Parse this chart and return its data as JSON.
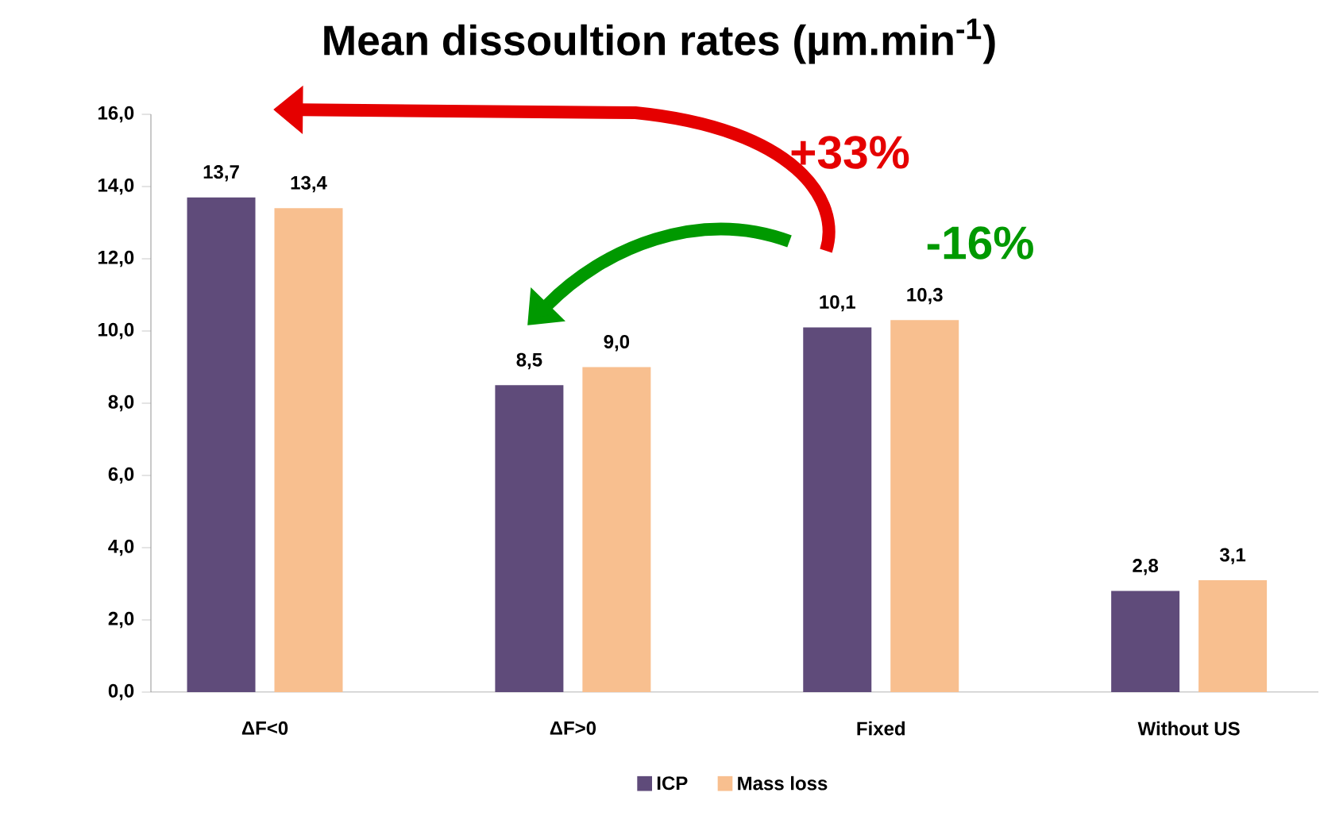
{
  "chart_data": {
    "type": "bar",
    "title": "Mean dissoultion rates (µm.min$^{-1}$)",
    "categories": [
      "ΔF<0",
      "ΔF>0",
      "Fixed",
      "Without US"
    ],
    "series": [
      {
        "name": "ICP",
        "color": "#5f4b7a",
        "values": [
          13.7,
          8.5,
          10.1,
          2.8
        ],
        "value_labels": [
          "13,7",
          "8,5",
          "10,1",
          "2,8"
        ]
      },
      {
        "name": "Mass loss",
        "color": "#f8bf8f",
        "values": [
          13.4,
          9.0,
          10.3,
          3.1
        ],
        "value_labels": [
          "13,4",
          "9,0",
          "10,3",
          "3,1"
        ]
      }
    ],
    "ylim": [
      0,
      16
    ],
    "yticks": [
      {
        "value": 0,
        "label": "0,0"
      },
      {
        "value": 2,
        "label": "2,0"
      },
      {
        "value": 4,
        "label": "4,0"
      },
      {
        "value": 6,
        "label": "6,0"
      },
      {
        "value": 8,
        "label": "8,0"
      },
      {
        "value": 10,
        "label": "10,0"
      },
      {
        "value": 12,
        "label": "12,0"
      },
      {
        "value": 14,
        "label": "14,0"
      },
      {
        "value": 16,
        "label": "16,0"
      }
    ],
    "annotations": [
      "+33%",
      "-16%"
    ],
    "legend": "bottom"
  }
}
